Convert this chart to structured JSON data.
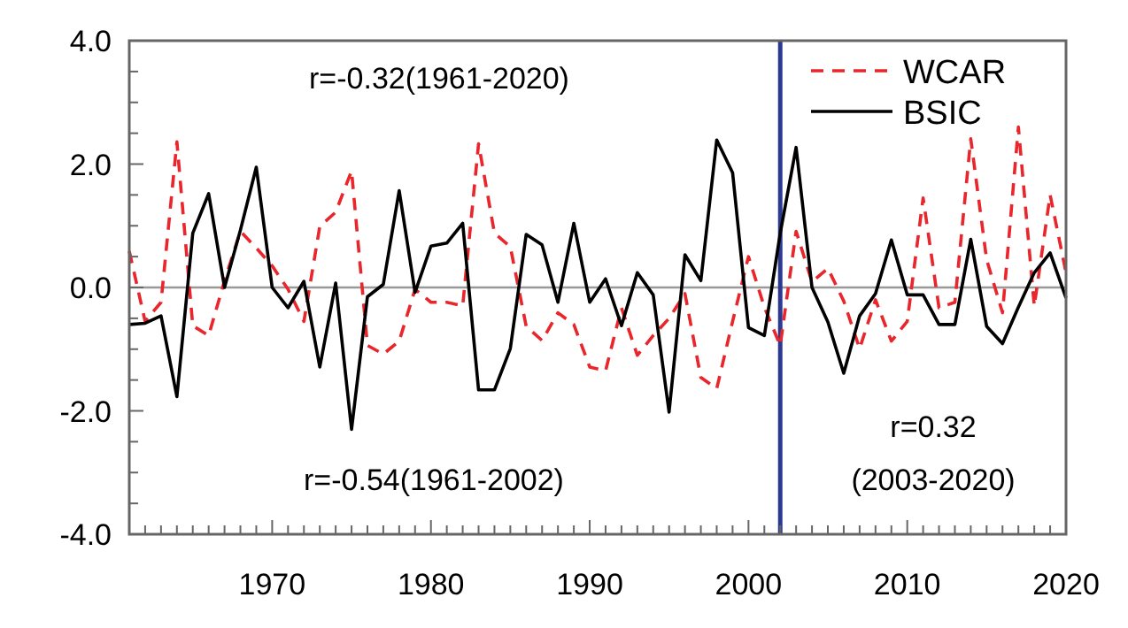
{
  "chart_data": {
    "type": "line",
    "x": [
      1961,
      1962,
      1963,
      1964,
      1965,
      1966,
      1967,
      1968,
      1969,
      1970,
      1971,
      1972,
      1973,
      1974,
      1975,
      1976,
      1977,
      1978,
      1979,
      1980,
      1981,
      1982,
      1983,
      1984,
      1985,
      1986,
      1987,
      1988,
      1989,
      1990,
      1991,
      1992,
      1993,
      1994,
      1995,
      1996,
      1997,
      1998,
      1999,
      2000,
      2001,
      2002,
      2003,
      2004,
      2005,
      2006,
      2007,
      2008,
      2009,
      2010,
      2011,
      2012,
      2013,
      2014,
      2015,
      2016,
      2017,
      2018,
      2019,
      2020
    ],
    "series": [
      {
        "name": "WCAR",
        "color": "#e8262b",
        "line_style": "dashed",
        "values": [
          0.59,
          -0.55,
          -0.24,
          2.36,
          -0.62,
          -0.78,
          0.11,
          0.91,
          0.64,
          0.35,
          -0.03,
          -0.55,
          0.99,
          1.22,
          1.89,
          -0.94,
          -1.08,
          -0.87,
          -0.03,
          -0.24,
          -0.24,
          -0.3,
          2.33,
          0.88,
          0.66,
          -0.63,
          -0.86,
          -0.41,
          -0.6,
          -1.29,
          -1.35,
          -0.33,
          -1.1,
          -0.78,
          -0.5,
          -0.1,
          -1.46,
          -1.64,
          -0.55,
          0.5,
          -0.32,
          -0.94,
          0.91,
          0.09,
          0.31,
          -0.22,
          -0.99,
          -0.2,
          -0.87,
          -0.55,
          1.45,
          -0.33,
          -0.24,
          2.41,
          0.45,
          -0.41,
          2.6,
          -0.3,
          1.5,
          0.24
        ]
      },
      {
        "name": "BSIC",
        "color": "#000000",
        "line_style": "solid",
        "values": [
          -0.6,
          -0.58,
          -0.46,
          -1.77,
          0.88,
          1.52,
          0.0,
          0.93,
          1.95,
          0.0,
          -0.33,
          0.1,
          -1.29,
          0.07,
          -2.3,
          -0.15,
          0.05,
          1.57,
          -0.08,
          0.67,
          0.72,
          1.04,
          -1.66,
          -1.66,
          -0.99,
          0.86,
          0.69,
          -0.24,
          1.04,
          -0.24,
          0.14,
          -0.62,
          0.24,
          -0.12,
          -2.02,
          0.53,
          0.11,
          2.39,
          1.86,
          -0.65,
          -0.78,
          0.88,
          2.27,
          0.0,
          -0.56,
          -1.39,
          -0.46,
          -0.1,
          0.77,
          -0.12,
          -0.12,
          -0.6,
          -0.6,
          0.78,
          -0.63,
          -0.91,
          -0.32,
          0.24,
          0.56,
          -0.17
        ]
      }
    ],
    "xlim": [
      1961,
      2020
    ],
    "xticks": [
      {
        "value": 1961,
        "label": null
      },
      {
        "value": 1962,
        "label": null
      },
      {
        "value": 1963,
        "label": null
      },
      {
        "value": 1964,
        "label": null
      },
      {
        "value": 1965,
        "label": null
      },
      {
        "value": 1966,
        "label": null
      },
      {
        "value": 1967,
        "label": null
      },
      {
        "value": 1968,
        "label": null
      },
      {
        "value": 1969,
        "label": null
      },
      1970,
      {
        "value": 1971,
        "label": null
      },
      {
        "value": 1972,
        "label": null
      },
      {
        "value": 1973,
        "label": null
      },
      {
        "value": 1974,
        "label": null
      },
      {
        "value": 1975,
        "label": null
      },
      {
        "value": 1976,
        "label": null
      },
      {
        "value": 1977,
        "label": null
      },
      {
        "value": 1978,
        "label": null
      },
      {
        "value": 1979,
        "label": null
      },
      1980,
      {
        "value": 1981,
        "label": null
      },
      {
        "value": 1982,
        "label": null
      },
      {
        "value": 1983,
        "label": null
      },
      {
        "value": 1984,
        "label": null
      },
      {
        "value": 1985,
        "label": null
      },
      {
        "value": 1986,
        "label": null
      },
      {
        "value": 1987,
        "label": null
      },
      {
        "value": 1988,
        "label": null
      },
      {
        "value": 1989,
        "label": null
      },
      1990,
      {
        "value": 1991,
        "label": null
      },
      {
        "value": 1992,
        "label": null
      },
      {
        "value": 1993,
        "label": null
      },
      {
        "value": 1994,
        "label": null
      },
      {
        "value": 1995,
        "label": null
      },
      {
        "value": 1996,
        "label": null
      },
      {
        "value": 1997,
        "label": null
      },
      {
        "value": 1998,
        "label": null
      },
      {
        "value": 1999,
        "label": null
      },
      2000,
      {
        "value": 2001,
        "label": null
      },
      {
        "value": 2002,
        "label": null
      },
      {
        "value": 2003,
        "label": null
      },
      {
        "value": 2004,
        "label": null
      },
      {
        "value": 2005,
        "label": null
      },
      {
        "value": 2006,
        "label": null
      },
      {
        "value": 2007,
        "label": null
      },
      {
        "value": 2008,
        "label": null
      },
      {
        "value": 2009,
        "label": null
      },
      2010,
      {
        "value": 2011,
        "label": null
      },
      {
        "value": 2012,
        "label": null
      },
      {
        "value": 2013,
        "label": null
      },
      {
        "value": 2014,
        "label": null
      },
      {
        "value": 2015,
        "label": null
      },
      {
        "value": 2016,
        "label": null
      },
      {
        "value": 2017,
        "label": null
      },
      {
        "value": 2018,
        "label": null
      },
      {
        "value": 2019,
        "label": null
      },
      2020
    ],
    "ylim": [
      -4,
      4
    ],
    "yticks": [
      {
        "value": -4,
        "label": "-4.0"
      },
      {
        "value": -3.5,
        "label": null
      },
      {
        "value": -3,
        "label": null
      },
      {
        "value": -2.5,
        "label": null
      },
      {
        "value": -2,
        "label": "-2.0"
      },
      {
        "value": -1.5,
        "label": null
      },
      {
        "value": -1,
        "label": null
      },
      {
        "value": -0.5,
        "label": null
      },
      {
        "value": 0,
        "label": "0.0"
      },
      {
        "value": 0.5,
        "label": null
      },
      {
        "value": 1,
        "label": null
      },
      {
        "value": 1.5,
        "label": null
      },
      {
        "value": 2,
        "label": "2.0"
      },
      {
        "value": 2.5,
        "label": null
      },
      {
        "value": 3,
        "label": null
      },
      {
        "value": 3.5,
        "label": null
      },
      {
        "value": 4,
        "label": "4.0"
      }
    ],
    "ref_lines": [
      {
        "axis": "y",
        "value": 0,
        "color": "#999999"
      },
      {
        "axis": "x",
        "value": 2002,
        "color": "#2b3a8f"
      }
    ],
    "annotations": [
      "r=-0.32(1961-2020)",
      "r=-0.54(1961-2002)",
      "r=0.32",
      "(2003-2020)"
    ],
    "legend": "top right",
    "marker": "none",
    "grid": false
  }
}
